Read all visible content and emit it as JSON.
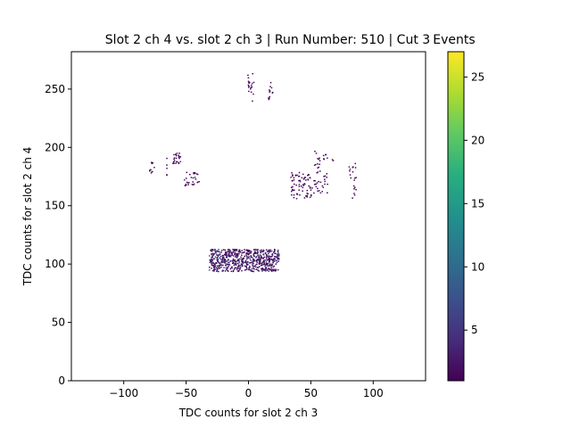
{
  "chart_data": {
    "type": "heatmap",
    "title": "Slot 2 ch 4 vs. slot 2 ch 3 | Run Number: 510 | Cut 3",
    "colorbar_label": "Events",
    "xlabel": "TDC counts for slot 2 ch 3",
    "ylabel": "TDC counts for slot 2 ch 4",
    "xlim": [
      -142,
      142
    ],
    "ylim": [
      0,
      282
    ],
    "xticks": [
      -100,
      -50,
      0,
      50,
      100
    ],
    "yticks": [
      0,
      50,
      100,
      150,
      200,
      250
    ],
    "colorbar_range": [
      1,
      27
    ],
    "colorbar_ticks": [
      5,
      10,
      15,
      20,
      25
    ],
    "colormap": "viridis",
    "grid": false,
    "clusters": [
      {
        "x": [
          -32,
          24
        ],
        "y": [
          93,
          112
        ],
        "count": 650,
        "min": 1,
        "max": 9
      },
      {
        "x": [
          -80,
          -76
        ],
        "y": [
          177,
          192
        ],
        "count": 10,
        "min": 1,
        "max": 2
      },
      {
        "x": [
          -66,
          -66
        ],
        "y": [
          174,
          193
        ],
        "count": 5,
        "min": 1,
        "max": 2
      },
      {
        "x": [
          -61,
          -55
        ],
        "y": [
          185,
          195
        ],
        "count": 25,
        "min": 1,
        "max": 3
      },
      {
        "x": [
          -52,
          -40
        ],
        "y": [
          166,
          178
        ],
        "count": 28,
        "min": 1,
        "max": 3
      },
      {
        "x": [
          -1,
          4
        ],
        "y": [
          239,
          263
        ],
        "count": 20,
        "min": 1,
        "max": 3
      },
      {
        "x": [
          15,
          19
        ],
        "y": [
          226,
          256
        ],
        "count": 12,
        "min": 1,
        "max": 2
      },
      {
        "x": [
          33,
          52
        ],
        "y": [
          155,
          178
        ],
        "count": 75,
        "min": 1,
        "max": 3
      },
      {
        "x": [
          52,
          63
        ],
        "y": [
          160,
          197
        ],
        "count": 45,
        "min": 1,
        "max": 3
      },
      {
        "x": [
          66,
          68
        ],
        "y": [
          186,
          190
        ],
        "count": 2,
        "min": 1,
        "max": 1
      },
      {
        "x": [
          80,
          86
        ],
        "y": [
          155,
          187
        ],
        "count": 20,
        "min": 1,
        "max": 2
      }
    ]
  }
}
